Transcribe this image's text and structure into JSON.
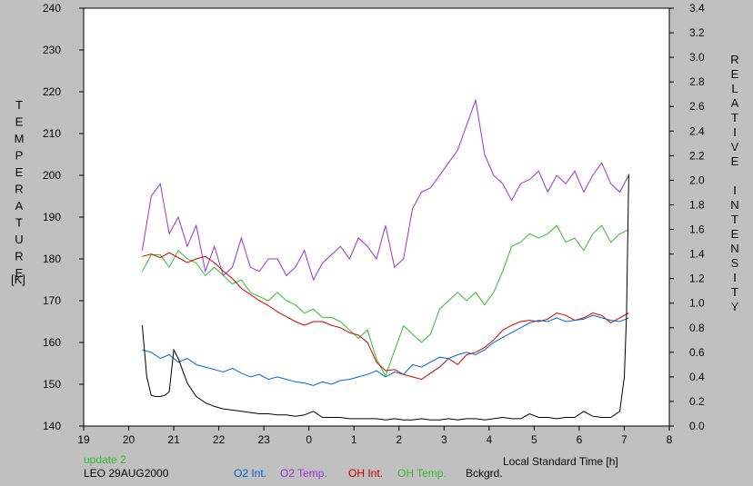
{
  "chart_data": {
    "type": "line",
    "xlabel": "Local Standard Time [h]",
    "ylabel_left_letters": [
      "T",
      "E",
      "M",
      "P",
      "E",
      "R",
      "A",
      "T",
      "U",
      "R",
      "E"
    ],
    "ylabel_left_unit": "[K]",
    "ylabel_right_letters": [
      "R",
      "E",
      "L",
      "A",
      "T",
      "I",
      "V",
      "E",
      "",
      "I",
      "N",
      "T",
      "E",
      "N",
      "S",
      "I",
      "T",
      "Y"
    ],
    "x_ticks": [
      "19",
      "20",
      "21",
      "22",
      "23",
      "0",
      "1",
      "2",
      "3",
      "4",
      "5",
      "6",
      "7",
      "8"
    ],
    "xlim": [
      19,
      32
    ],
    "y_left_ticks": [
      "140",
      "150",
      "160",
      "170",
      "180",
      "190",
      "200",
      "210",
      "220",
      "230",
      "240"
    ],
    "ylim_left": [
      140,
      240
    ],
    "y_right_ticks": [
      "0.0",
      "0.2",
      "0.4",
      "0.6",
      "0.8",
      "1.0",
      "1.2",
      "1.4",
      "1.6",
      "1.8",
      "2.0",
      "2.2",
      "2.4",
      "2.6",
      "2.8",
      "3.0",
      "3.2",
      "3.4"
    ],
    "ylim_right": [
      0,
      3.4
    ],
    "grid": false,
    "status_text": "update 2",
    "site_date": "LEO 29AUG2000",
    "legend": [
      {
        "label": "O2 Int.",
        "color": "#0066cc"
      },
      {
        "label": "O2 Temp.",
        "color": "#9933cc"
      },
      {
        "label": "OH Int.",
        "color": "#cc0000"
      },
      {
        "label": "OH Temp.",
        "color": "#33bb33"
      },
      {
        "label": "Bckgrd.",
        "color": "#000000"
      }
    ],
    "series": [
      {
        "key": "o2temp",
        "axis": "left",
        "color": "#9933cc",
        "x": [
          20.3,
          20.5,
          20.7,
          20.9,
          21.1,
          21.3,
          21.5,
          21.7,
          21.9,
          22.1,
          22.3,
          22.5,
          22.7,
          22.9,
          23.1,
          23.3,
          23.5,
          23.7,
          23.9,
          24.1,
          24.3,
          24.5,
          24.7,
          24.9,
          25.1,
          25.3,
          25.5,
          25.7,
          25.9,
          26.1,
          26.3,
          26.5,
          26.7,
          26.9,
          27.1,
          27.3,
          27.5,
          27.7,
          27.9,
          28.1,
          28.3,
          28.5,
          28.7,
          28.9,
          29.1,
          29.3,
          29.5,
          29.7,
          29.9,
          30.1,
          30.3,
          30.5,
          30.7,
          30.9,
          31.1
        ],
        "y": [
          182,
          195,
          198,
          186,
          190,
          183,
          188,
          177,
          183,
          176,
          178,
          185,
          178,
          177,
          180,
          180,
          176,
          178,
          182,
          175,
          179,
          181,
          183,
          180,
          185,
          183,
          180,
          188,
          178,
          180,
          192,
          196,
          197,
          200,
          203,
          206,
          212,
          218,
          205,
          200,
          198,
          194,
          198,
          199,
          201,
          196,
          200,
          198,
          201,
          196,
          200,
          203,
          198,
          196,
          200
        ]
      },
      {
        "key": "ohtemp",
        "axis": "left",
        "color": "#33bb33",
        "x": [
          20.3,
          20.5,
          20.7,
          20.9,
          21.1,
          21.3,
          21.5,
          21.7,
          21.9,
          22.1,
          22.3,
          22.5,
          22.7,
          22.9,
          23.1,
          23.3,
          23.5,
          23.7,
          23.9,
          24.1,
          24.3,
          24.5,
          24.7,
          24.9,
          25.1,
          25.3,
          25.5,
          25.7,
          25.9,
          26.1,
          26.3,
          26.5,
          26.7,
          26.9,
          27.1,
          27.3,
          27.5,
          27.7,
          27.9,
          28.1,
          28.3,
          28.5,
          28.7,
          28.9,
          29.1,
          29.3,
          29.5,
          29.7,
          29.9,
          30.1,
          30.3,
          30.5,
          30.7,
          30.9,
          31.1
        ],
        "y": [
          177,
          181,
          181,
          178,
          182,
          180,
          179,
          176,
          178,
          176,
          174,
          175,
          172,
          171,
          170,
          172,
          170,
          169,
          167,
          168,
          166,
          166,
          165,
          163,
          161,
          163,
          156,
          152,
          158,
          164,
          162,
          160,
          162,
          168,
          170,
          172,
          170,
          172,
          169,
          172,
          177,
          183,
          184,
          186,
          185,
          186,
          188,
          184,
          185,
          182,
          186,
          188,
          184,
          186,
          187
        ]
      },
      {
        "key": "ohint",
        "axis": "right",
        "color": "#cc0000",
        "x": [
          20.3,
          20.5,
          20.7,
          20.9,
          21.1,
          21.3,
          21.5,
          21.7,
          21.9,
          22.1,
          22.3,
          22.5,
          22.7,
          22.9,
          23.1,
          23.3,
          23.5,
          23.7,
          23.9,
          24.1,
          24.3,
          24.5,
          24.7,
          24.9,
          25.1,
          25.3,
          25.5,
          25.7,
          25.9,
          26.1,
          26.3,
          26.5,
          26.7,
          26.9,
          27.1,
          27.3,
          27.5,
          27.7,
          27.9,
          28.1,
          28.3,
          28.5,
          28.7,
          28.9,
          29.1,
          29.3,
          29.5,
          29.7,
          29.9,
          30.1,
          30.3,
          30.5,
          30.7,
          30.9,
          31.1
        ],
        "y": [
          1.38,
          1.4,
          1.37,
          1.41,
          1.37,
          1.33,
          1.36,
          1.38,
          1.33,
          1.26,
          1.2,
          1.12,
          1.07,
          1.02,
          0.98,
          0.93,
          0.89,
          0.85,
          0.82,
          0.85,
          0.85,
          0.82,
          0.8,
          0.76,
          0.74,
          0.68,
          0.52,
          0.45,
          0.46,
          0.42,
          0.4,
          0.38,
          0.43,
          0.48,
          0.55,
          0.5,
          0.58,
          0.6,
          0.64,
          0.7,
          0.78,
          0.82,
          0.85,
          0.86,
          0.85,
          0.87,
          0.92,
          0.9,
          0.86,
          0.88,
          0.92,
          0.9,
          0.84,
          0.88,
          0.92
        ]
      },
      {
        "key": "o2int",
        "axis": "right",
        "color": "#0066cc",
        "x": [
          20.3,
          20.5,
          20.7,
          20.9,
          21.1,
          21.3,
          21.5,
          21.7,
          21.9,
          22.1,
          22.3,
          22.5,
          22.7,
          22.9,
          23.1,
          23.3,
          23.5,
          23.7,
          23.9,
          24.1,
          24.3,
          24.5,
          24.7,
          24.9,
          25.1,
          25.3,
          25.5,
          25.7,
          25.9,
          26.1,
          26.3,
          26.5,
          26.7,
          26.9,
          27.1,
          27.3,
          27.5,
          27.7,
          27.9,
          28.1,
          28.3,
          28.5,
          28.7,
          28.9,
          29.1,
          29.3,
          29.5,
          29.7,
          29.9,
          30.1,
          30.3,
          30.5,
          30.7,
          30.9,
          31.1
        ],
        "y": [
          0.62,
          0.6,
          0.55,
          0.58,
          0.52,
          0.55,
          0.5,
          0.48,
          0.46,
          0.44,
          0.47,
          0.43,
          0.4,
          0.42,
          0.38,
          0.4,
          0.38,
          0.36,
          0.35,
          0.33,
          0.36,
          0.34,
          0.37,
          0.38,
          0.4,
          0.42,
          0.45,
          0.4,
          0.44,
          0.42,
          0.5,
          0.48,
          0.52,
          0.56,
          0.55,
          0.58,
          0.6,
          0.58,
          0.62,
          0.68,
          0.72,
          0.76,
          0.8,
          0.84,
          0.86,
          0.85,
          0.88,
          0.85,
          0.86,
          0.87,
          0.9,
          0.88,
          0.86,
          0.85,
          0.88
        ]
      },
      {
        "key": "bkg",
        "axis": "right",
        "color": "#000000",
        "x": [
          20.3,
          20.4,
          20.5,
          20.6,
          20.7,
          20.8,
          20.9,
          21.0,
          21.1,
          21.3,
          21.5,
          21.7,
          21.9,
          22.1,
          22.3,
          22.5,
          22.7,
          22.9,
          23.1,
          23.3,
          23.5,
          23.7,
          23.9,
          24.1,
          24.3,
          24.5,
          24.7,
          24.9,
          25.1,
          25.3,
          25.5,
          25.7,
          25.9,
          26.1,
          26.3,
          26.5,
          26.7,
          26.9,
          27.1,
          27.3,
          27.5,
          27.7,
          27.9,
          28.1,
          28.3,
          28.5,
          28.7,
          28.9,
          29.1,
          29.3,
          29.5,
          29.7,
          29.9,
          30.1,
          30.3,
          30.5,
          30.7,
          30.9,
          31.0,
          31.05,
          31.1
        ],
        "y": [
          0.82,
          0.4,
          0.25,
          0.24,
          0.24,
          0.25,
          0.28,
          0.62,
          0.55,
          0.35,
          0.24,
          0.19,
          0.16,
          0.14,
          0.13,
          0.12,
          0.11,
          0.1,
          0.1,
          0.09,
          0.09,
          0.08,
          0.09,
          0.12,
          0.07,
          0.07,
          0.07,
          0.06,
          0.06,
          0.06,
          0.06,
          0.05,
          0.06,
          0.05,
          0.05,
          0.06,
          0.05,
          0.05,
          0.06,
          0.05,
          0.06,
          0.06,
          0.05,
          0.06,
          0.07,
          0.06,
          0.06,
          0.1,
          0.07,
          0.07,
          0.06,
          0.07,
          0.07,
          0.12,
          0.08,
          0.07,
          0.07,
          0.12,
          0.4,
          0.9,
          2.05
        ]
      }
    ]
  }
}
